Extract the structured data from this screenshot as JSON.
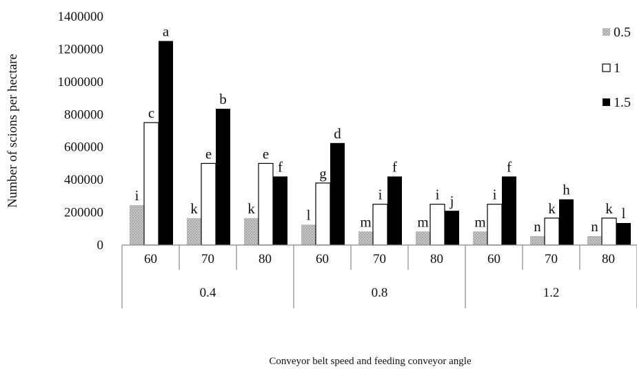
{
  "chart_data": {
    "type": "bar",
    "title": "",
    "xlabel": "Conveyor belt speed and feeding conveyor angle",
    "ylabel": "Number of scions per hectare",
    "ylim": [
      0,
      1400000
    ],
    "yticks": [
      "0",
      "200000",
      "400000",
      "600000",
      "800000",
      "1000000",
      "1200000",
      "1400000"
    ],
    "grid": false,
    "legend_position": "right",
    "groups": [
      {
        "label": "0.4",
        "categories": [
          "60",
          "70",
          "80"
        ]
      },
      {
        "label": "0.8",
        "categories": [
          "60",
          "70",
          "80"
        ]
      },
      {
        "label": "1.2",
        "categories": [
          "60",
          "70",
          "80"
        ]
      }
    ],
    "series": [
      {
        "name": "0.5",
        "color": "#b0b0b0",
        "pattern": "dotted-gray",
        "values": [
          245000,
          165000,
          165000,
          125000,
          83000,
          83000,
          83000,
          55000,
          55000
        ],
        "labels": [
          "i",
          "k",
          "k",
          "l",
          "m",
          "m",
          "m",
          "n",
          "n"
        ]
      },
      {
        "name": "1",
        "color": "#ffffff",
        "pattern": "white",
        "values": [
          750000,
          500000,
          500000,
          380000,
          250000,
          250000,
          250000,
          165000,
          165000
        ],
        "labels": [
          "c",
          "e",
          "e",
          "g",
          "i",
          "i",
          "i",
          "k",
          "k"
        ]
      },
      {
        "name": "1.5",
        "color": "#000000",
        "pattern": "black",
        "values": [
          1250000,
          835000,
          420000,
          625000,
          420000,
          210000,
          420000,
          280000,
          135000
        ],
        "labels": [
          "a",
          "b",
          "f",
          "d",
          "f",
          "j",
          "f",
          "h",
          "l"
        ]
      }
    ]
  }
}
